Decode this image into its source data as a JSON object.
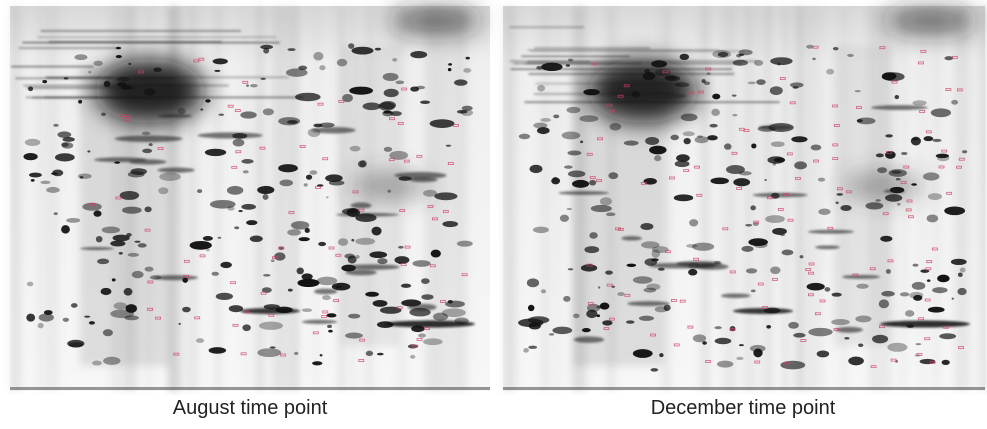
{
  "panels": [
    {
      "caption": "August time point"
    },
    {
      "caption": "December time point"
    }
  ]
}
